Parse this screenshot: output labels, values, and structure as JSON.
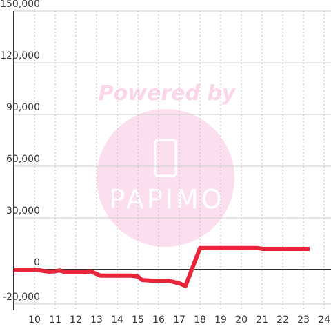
{
  "chart_data": {
    "type": "line",
    "annotations": [
      "Powered by",
      "PAPIMO"
    ],
    "xlim": [
      9,
      24.33
    ],
    "xticks": [
      10,
      11,
      12,
      13,
      14,
      15,
      16,
      17,
      18,
      19,
      20,
      21,
      22,
      23,
      24
    ],
    "ylim": [
      -23600,
      150000
    ],
    "yticks": [
      {
        "value": -20000,
        "label": "-20,000"
      },
      0,
      {
        "value": 30000,
        "label": "30,000"
      },
      {
        "value": 60000,
        "label": "60,000"
      },
      {
        "value": 90000,
        "label": "90,000"
      },
      {
        "value": 120000,
        "label": "120,000"
      },
      {
        "value": 150000,
        "label": "150,000"
      }
    ],
    "grid": true,
    "series": [
      {
        "color": "#e8253a",
        "x": [
          9,
          10,
          10.7,
          11,
          11.2,
          11.5,
          12.5,
          12.7,
          13.2,
          14.7,
          15,
          15.2,
          15.7,
          16.5,
          17,
          17.3,
          18,
          20.8,
          21,
          23.3
        ],
        "values": [
          0,
          0,
          -1200,
          -1000,
          -500,
          -1500,
          -1500,
          -1000,
          -3500,
          -3500,
          -4000,
          -6000,
          -6500,
          -6500,
          -8000,
          -9500,
          12500,
          12500,
          12000,
          12000
        ]
      }
    ]
  }
}
